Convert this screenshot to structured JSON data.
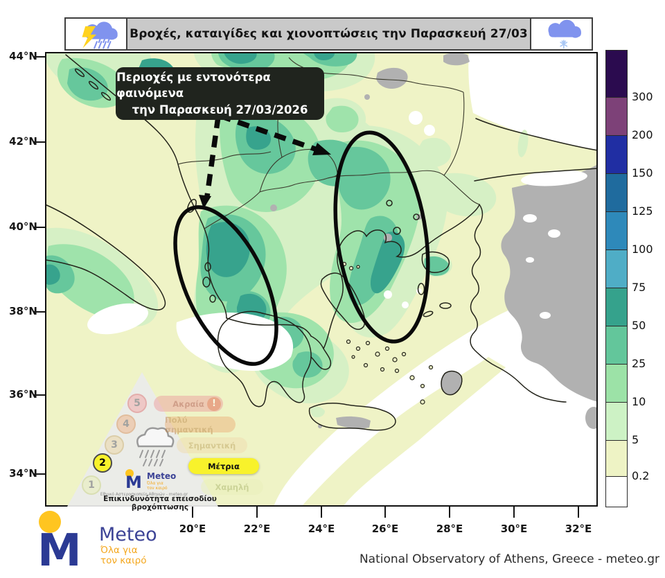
{
  "banner": {
    "title": "Βροχές, καταιγίδες και χιονοπτώσεις την Παρασκευή 27/03",
    "left_icon": "storm-cloud-lightning-rain",
    "right_icon": "snow-cloud-snowflake"
  },
  "annotation_box": {
    "line1": "Περιοχές με εντονότερα φαινόμενα",
    "line2": "την Παρασκευή 27/03/2026"
  },
  "axes": {
    "lat": [
      "44°N",
      "42°N",
      "40°N",
      "38°N",
      "36°N",
      "34°N"
    ],
    "lon": [
      "20°E",
      "22°E",
      "24°E",
      "26°E",
      "28°E",
      "30°E",
      "32°E"
    ]
  },
  "colorbar": {
    "labels_top_to_bottom": [
      "300",
      "200",
      "150",
      "125",
      "100",
      "75",
      "50",
      "25",
      "10",
      "5",
      "0.2"
    ],
    "colors_top_to_bottom": [
      "#2b0b4f",
      "#7d4178",
      "#202ea3",
      "#1f6b9e",
      "#2e89ba",
      "#4fadc6",
      "#35a28c",
      "#63c69b",
      "#9ce2a7",
      "#cdf2c5",
      "#eef3c5",
      "#ffffff"
    ]
  },
  "map_palette": {
    "no_precip": "#ffffff",
    "mm_0_2_to_5": "#eff3c6",
    "mm_5_to_10": "#d6f0c5",
    "mm_10_to_25": "#9fe3ab",
    "mm_25_to_50": "#66c79c",
    "mm_50_to_75": "#37a38d",
    "masked_gray": "#b1b1b1",
    "coastline": "#23231a"
  },
  "risk_pyramid": {
    "title": "Επικινδυνότητα επεισοδίου βροχόπτωσης",
    "active_level": "2",
    "levels": [
      {
        "num": "5",
        "label": "Ακραία",
        "pill_color": "#eda0a0",
        "text_color": "#b34d4d",
        "badge_fill": "#f2a6a6",
        "badge_ring": "#dd7070",
        "has_alert": true,
        "active": false
      },
      {
        "num": "4",
        "label": "Πολύ σημαντική",
        "pill_color": "#ecb27c",
        "text_color": "#bd7e3e",
        "badge_fill": "#eeb286",
        "badge_ring": "#d98f54",
        "has_alert": false,
        "active": false
      },
      {
        "num": "3",
        "label": "Σημαντική",
        "pill_color": "#f0ddb0",
        "text_color": "#bfa05e",
        "badge_fill": "#ecd6a2",
        "badge_ring": "#cdb06a",
        "has_alert": false,
        "active": false
      },
      {
        "num": "2",
        "label": "Μέτρια",
        "pill_color": "#f8f22b",
        "text_color": "#111111",
        "badge_fill": "#f8f22b",
        "badge_ring": "#4a4a4a",
        "has_alert": false,
        "active": true
      },
      {
        "num": "1",
        "label": "Χαμηλή",
        "pill_color": "#eaf0bb",
        "text_color": "#a9b56a",
        "badge_fill": "#e9efb3",
        "badge_ring": "#c9d37f",
        "has_alert": false,
        "active": false
      }
    ],
    "logo": {
      "brand": "Meteo",
      "tagline1": "Όλα για",
      "tagline2": "τον καιρό",
      "org": "Εθνικό Αστεροσκοπείο Αθηνών - meteo.gr"
    }
  },
  "footer": {
    "credit": "National Observatory of Athens, Greece - meteo.gr",
    "logo": {
      "brand": "Meteo",
      "tagline1": "Όλα για",
      "tagline2": "τον καιρό"
    }
  }
}
